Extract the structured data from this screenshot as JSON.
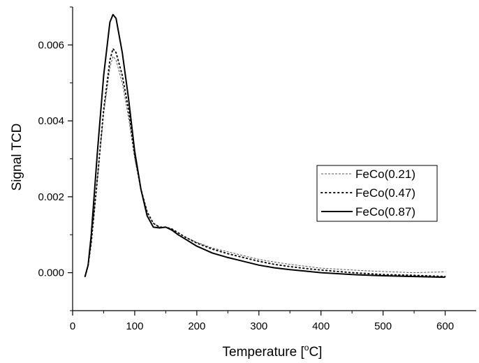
{
  "chart_data": {
    "type": "line",
    "xlabel": "Temperature [",
    "xlabel_sup": "o",
    "xlabel_tail": "C]",
    "ylabel": "Signal TCD",
    "xlim": [
      0,
      650
    ],
    "ylim": [
      -0.001,
      0.007
    ],
    "xticks": [
      "0",
      "100",
      "200",
      "300",
      "400",
      "500",
      "600"
    ],
    "yticks": [
      "0.000",
      "0.002",
      "0.004",
      "0.006"
    ],
    "grid": false,
    "legend_position": "right-middle",
    "series": [
      {
        "name": "FeCo(0.21)",
        "style": "dashed-thin",
        "color": "#555555",
        "points": [
          [
            20,
            -0.0001
          ],
          [
            25,
            0.0002
          ],
          [
            30,
            0.0008
          ],
          [
            40,
            0.0025
          ],
          [
            50,
            0.0042
          ],
          [
            60,
            0.0054
          ],
          [
            65,
            0.0057
          ],
          [
            70,
            0.0056
          ],
          [
            80,
            0.005
          ],
          [
            90,
            0.0041
          ],
          [
            100,
            0.003
          ],
          [
            110,
            0.0022
          ],
          [
            120,
            0.0016
          ],
          [
            130,
            0.0013
          ],
          [
            140,
            0.0012
          ],
          [
            150,
            0.0012
          ],
          [
            160,
            0.00115
          ],
          [
            170,
            0.00105
          ],
          [
            180,
            0.00095
          ],
          [
            200,
            0.0008
          ],
          [
            225,
            0.00065
          ],
          [
            250,
            0.00055
          ],
          [
            275,
            0.00045
          ],
          [
            300,
            0.00035
          ],
          [
            325,
            0.00028
          ],
          [
            350,
            0.00022
          ],
          [
            375,
            0.00017
          ],
          [
            400,
            0.00012
          ],
          [
            450,
            7e-05
          ],
          [
            500,
            3e-05
          ],
          [
            550,
            0.0
          ],
          [
            600,
            2e-05
          ]
        ]
      },
      {
        "name": "FeCo(0.47)",
        "style": "dotted",
        "color": "#111111",
        "points": [
          [
            20,
            -0.0001
          ],
          [
            25,
            0.0002
          ],
          [
            30,
            0.0008
          ],
          [
            40,
            0.0025
          ],
          [
            50,
            0.0043
          ],
          [
            60,
            0.0056
          ],
          [
            65,
            0.0059
          ],
          [
            70,
            0.0058
          ],
          [
            80,
            0.0052
          ],
          [
            90,
            0.0043
          ],
          [
            100,
            0.0031
          ],
          [
            110,
            0.0022
          ],
          [
            120,
            0.0016
          ],
          [
            130,
            0.0013
          ],
          [
            140,
            0.0012
          ],
          [
            150,
            0.0012
          ],
          [
            160,
            0.00115
          ],
          [
            170,
            0.00105
          ],
          [
            180,
            0.00095
          ],
          [
            200,
            0.00078
          ],
          [
            225,
            0.00062
          ],
          [
            250,
            0.0005
          ],
          [
            275,
            0.0004
          ],
          [
            300,
            0.0003
          ],
          [
            325,
            0.00022
          ],
          [
            350,
            0.00016
          ],
          [
            375,
            0.00011
          ],
          [
            400,
            7e-05
          ],
          [
            450,
            0.0
          ],
          [
            500,
            -5e-05
          ],
          [
            550,
            -7e-05
          ],
          [
            600,
            -0.0001
          ]
        ]
      },
      {
        "name": "FeCo(0.87)",
        "style": "solid",
        "color": "#000000",
        "points": [
          [
            20,
            -0.0001
          ],
          [
            25,
            0.0002
          ],
          [
            30,
            0.001
          ],
          [
            40,
            0.0032
          ],
          [
            50,
            0.0052
          ],
          [
            60,
            0.0066
          ],
          [
            65,
            0.0068
          ],
          [
            70,
            0.0067
          ],
          [
            80,
            0.0058
          ],
          [
            90,
            0.0046
          ],
          [
            100,
            0.0032
          ],
          [
            110,
            0.0022
          ],
          [
            120,
            0.0015
          ],
          [
            130,
            0.0012
          ],
          [
            140,
            0.00118
          ],
          [
            150,
            0.0012
          ],
          [
            160,
            0.00112
          ],
          [
            170,
            0.001
          ],
          [
            180,
            0.0009
          ],
          [
            200,
            0.0007
          ],
          [
            225,
            0.00052
          ],
          [
            250,
            0.0004
          ],
          [
            275,
            0.0003
          ],
          [
            300,
            0.0002
          ],
          [
            325,
            0.00013
          ],
          [
            350,
            8e-05
          ],
          [
            375,
            4e-05
          ],
          [
            400,
            0.0
          ],
          [
            450,
            -5e-05
          ],
          [
            500,
            -8e-05
          ],
          [
            550,
            -0.0001
          ],
          [
            600,
            -0.00012
          ]
        ]
      }
    ]
  }
}
